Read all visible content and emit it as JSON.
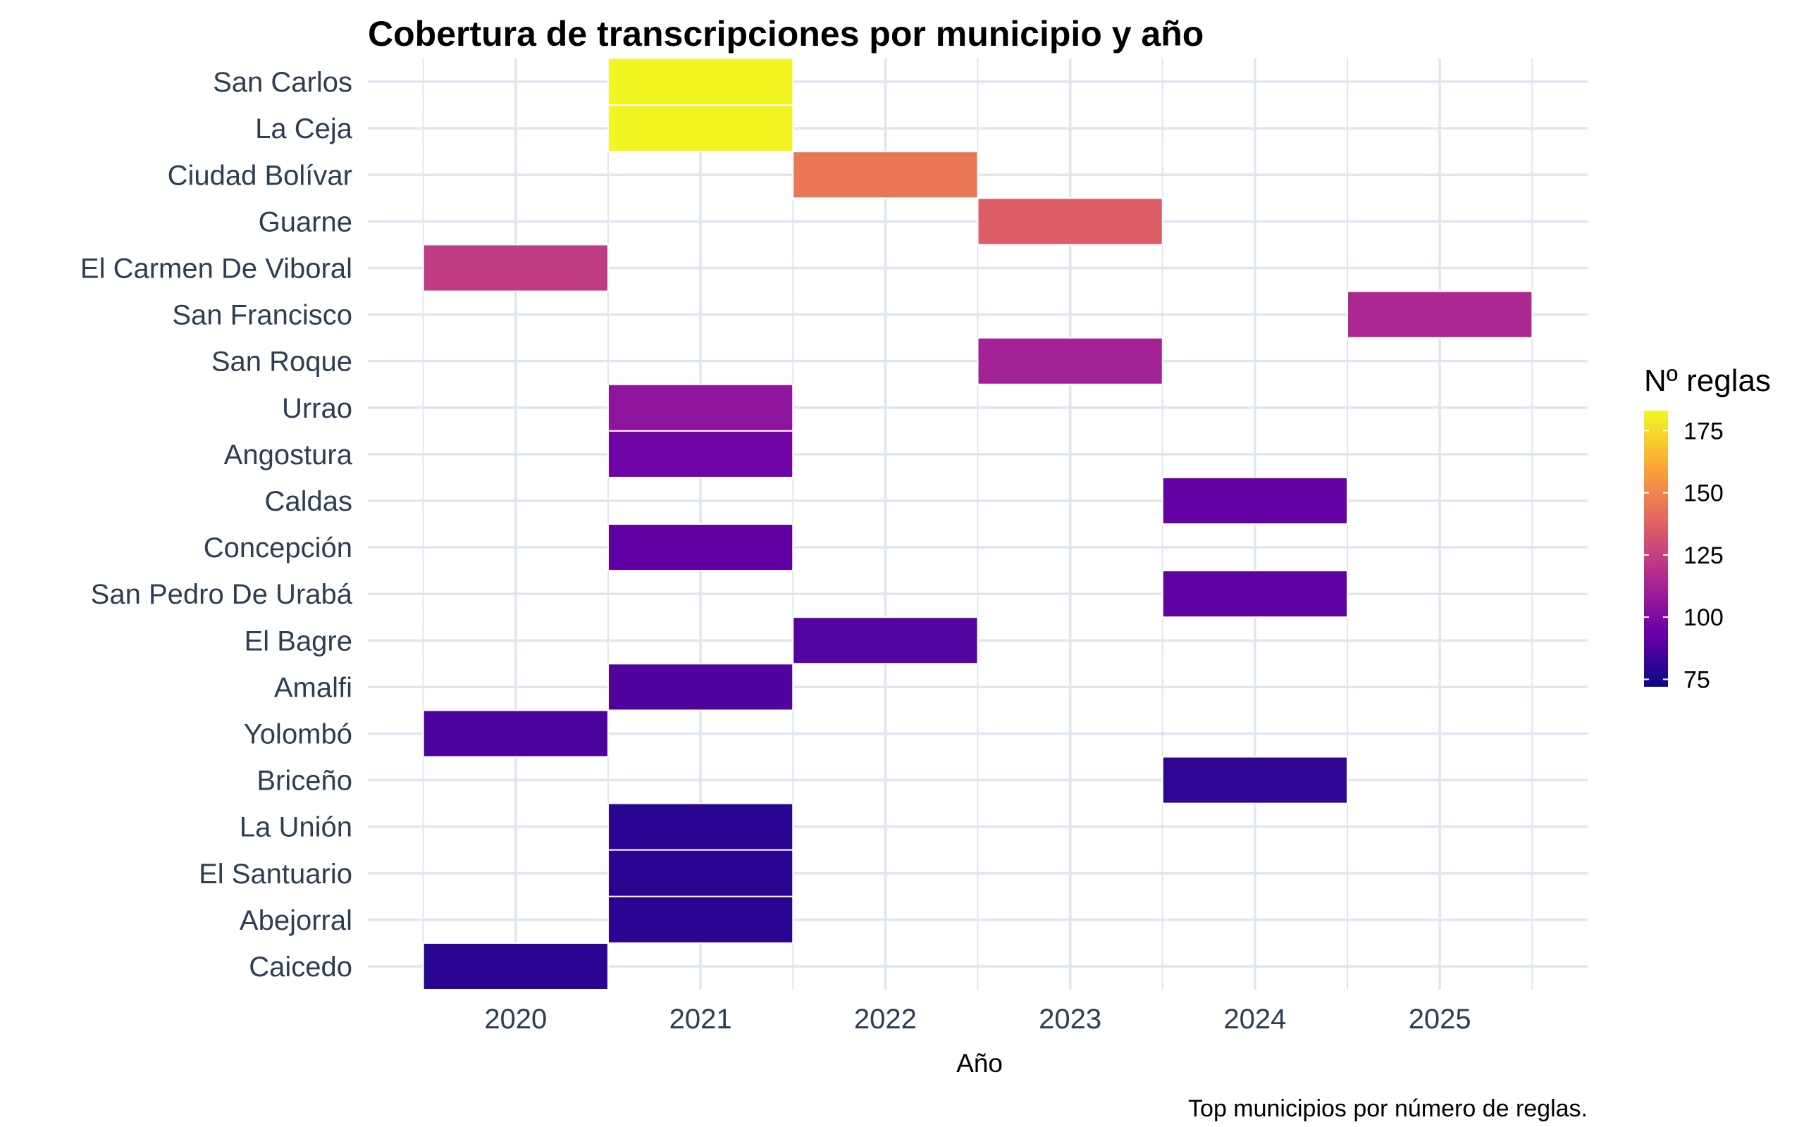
{
  "chart_data": {
    "type": "heatmap",
    "title": "Cobertura de transcripciones por municipio y año",
    "xlabel": "Año",
    "ylabel": "",
    "caption": "Top municipios por número de reglas.",
    "x_ticks": [
      2020,
      2021,
      2022,
      2023,
      2024,
      2025
    ],
    "xlim": [
      2019.2,
      2025.8
    ],
    "rows": [
      "San Carlos",
      "La Ceja",
      "Ciudad Bolívar",
      "Guarne",
      "El Carmen De Viboral",
      "San Francisco",
      "San Roque",
      "Urrao",
      "Angostura",
      "Caldas",
      "Concepción",
      "San Pedro De Urabá",
      "El Bagre",
      "Amalfi",
      "Yolombó",
      "Briceño",
      "La Unión",
      "El Santuario",
      "Abejorral",
      "Caicedo"
    ],
    "cells": [
      {
        "municipio": "San Carlos",
        "year": 2021,
        "value": 182
      },
      {
        "municipio": "La Ceja",
        "year": 2021,
        "value": 182
      },
      {
        "municipio": "Ciudad Bolívar",
        "year": 2022,
        "value": 145
      },
      {
        "municipio": "Guarne",
        "year": 2023,
        "value": 136
      },
      {
        "municipio": "El Carmen De Viboral",
        "year": 2020,
        "value": 123
      },
      {
        "municipio": "San Francisco",
        "year": 2025,
        "value": 115
      },
      {
        "municipio": "San Roque",
        "year": 2023,
        "value": 112
      },
      {
        "municipio": "Urrao",
        "year": 2021,
        "value": 105
      },
      {
        "municipio": "Angostura",
        "year": 2021,
        "value": 96
      },
      {
        "municipio": "Caldas",
        "year": 2024,
        "value": 93
      },
      {
        "municipio": "Concepción",
        "year": 2021,
        "value": 92
      },
      {
        "municipio": "San Pedro De Urabá",
        "year": 2024,
        "value": 91
      },
      {
        "municipio": "El Bagre",
        "year": 2022,
        "value": 89
      },
      {
        "municipio": "Amalfi",
        "year": 2021,
        "value": 88
      },
      {
        "municipio": "Yolombó",
        "year": 2020,
        "value": 87
      },
      {
        "municipio": "Briceño",
        "year": 2024,
        "value": 80
      },
      {
        "municipio": "La Unión",
        "year": 2021,
        "value": 79
      },
      {
        "municipio": "El Santuario",
        "year": 2021,
        "value": 79
      },
      {
        "municipio": "Abejorral",
        "year": 2021,
        "value": 79
      },
      {
        "municipio": "Caicedo",
        "year": 2020,
        "value": 79
      }
    ],
    "legend": {
      "title": "Nº reglas",
      "ticks": [
        75,
        100,
        125,
        150,
        175
      ],
      "range": [
        72,
        183
      ],
      "placement": "right"
    },
    "grid": true,
    "colors": {
      "scale": [
        "#0d0887",
        "#6a00a8",
        "#b12a90",
        "#e16462",
        "#fca636",
        "#f0f921"
      ],
      "grid": "#dfe6ef",
      "tick_text": "#2d3e50"
    }
  }
}
